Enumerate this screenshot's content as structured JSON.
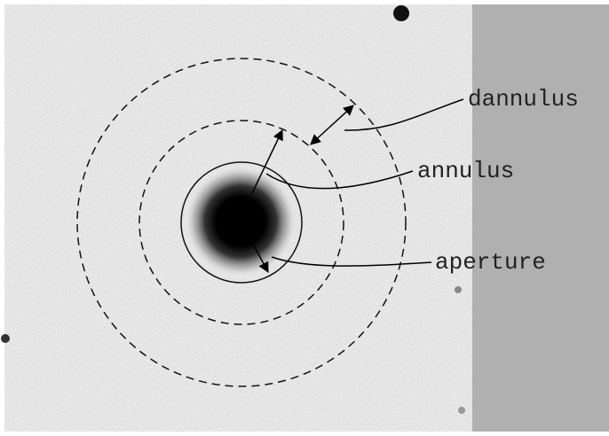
{
  "labels": [
    "dannulus",
    "annulus",
    "aperture"
  ]
}
